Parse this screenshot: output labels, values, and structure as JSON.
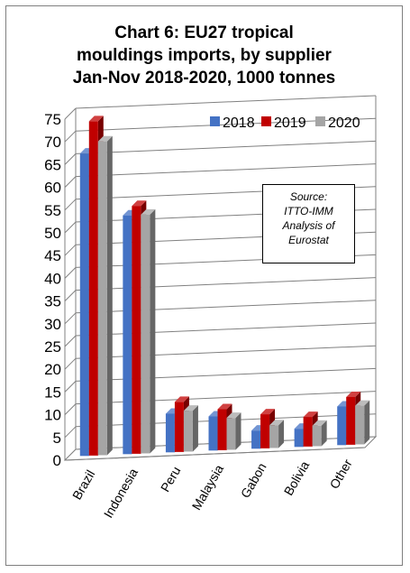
{
  "chart_data": {
    "type": "bar",
    "title_lines": [
      "Chart 6: EU27 tropical",
      "mouldings imports, by supplier",
      "Jan-Nov 2018-2020, 1000 tonnes"
    ],
    "categories": [
      "Brazil",
      "Indonesia",
      "Peru",
      "Malaysia",
      "Gabon",
      "Bolivia",
      "Other"
    ],
    "series": [
      {
        "name": "2018",
        "values": [
          66.5,
          52.5,
          8.5,
          7.5,
          4.0,
          4.0,
          8.5
        ],
        "color": "#4472c4"
      },
      {
        "name": "2019",
        "values": [
          73.5,
          54.5,
          11.0,
          9.0,
          7.5,
          6.5,
          10.5
        ],
        "color": "#c00000"
      },
      {
        "name": "2020",
        "values": [
          69.0,
          52.5,
          9.0,
          7.0,
          5.0,
          4.5,
          8.5
        ],
        "color": "#a5a5a5"
      }
    ],
    "ylim": [
      0,
      75
    ],
    "yticks": [
      "0",
      "5",
      "10",
      "15",
      "20",
      "25",
      "30",
      "35",
      "40",
      "45",
      "50",
      "55",
      "60",
      "65",
      "70",
      "75"
    ],
    "grid": true,
    "legend": "top-right",
    "source_lines": [
      "Source:",
      "ITTO-IMM",
      "Analysis of",
      "Eurostat"
    ]
  }
}
